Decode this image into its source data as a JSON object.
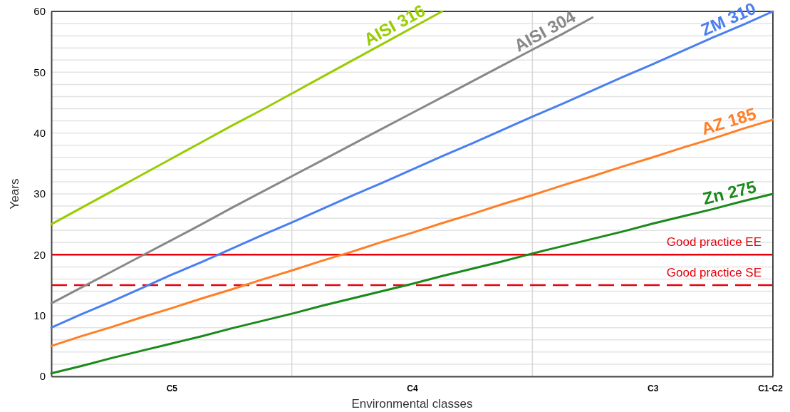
{
  "chart_data": {
    "type": "line",
    "xlabel": "Environmental classes",
    "ylabel": "Years",
    "categories": [
      null,
      null,
      null,
      null,
      "C5",
      null,
      null,
      null,
      null,
      null,
      null,
      null,
      "C4",
      null,
      null,
      null,
      null,
      null,
      null,
      null,
      "C3",
      null,
      null,
      null,
      "C1-C2"
    ],
    "ylim": [
      0,
      60
    ],
    "yticks": [
      0,
      {
        "value": 2,
        "label": null
      },
      {
        "value": 4,
        "label": null
      },
      {
        "value": 6,
        "label": null
      },
      {
        "value": 8,
        "label": null
      },
      10,
      {
        "value": 12,
        "label": null
      },
      {
        "value": 14,
        "label": null
      },
      {
        "value": 16,
        "label": null
      },
      {
        "value": 18,
        "label": null
      },
      20,
      {
        "value": 22,
        "label": null
      },
      {
        "value": 24,
        "label": null
      },
      {
        "value": 26,
        "label": null
      },
      {
        "value": 28,
        "label": null
      },
      30,
      {
        "value": 32,
        "label": null
      },
      {
        "value": 34,
        "label": null
      },
      {
        "value": 36,
        "label": null
      },
      {
        "value": 38,
        "label": null
      },
      40,
      {
        "value": 42,
        "label": null
      },
      {
        "value": 44,
        "label": null
      },
      {
        "value": 46,
        "label": null
      },
      {
        "value": 48,
        "label": null
      },
      50,
      {
        "value": 52,
        "label": null
      },
      {
        "value": 54,
        "label": null
      },
      {
        "value": 56,
        "label": null
      },
      {
        "value": 58,
        "label": null
      },
      60
    ],
    "grid": true,
    "marker": "none",
    "line_style": "solid",
    "series": [
      {
        "name": "AISI 316",
        "color": "#99cc00",
        "values": [
          25,
          27.7,
          30.4,
          33.1,
          35.8,
          38.5,
          41.2,
          43.8,
          46.5,
          49.2,
          51.9,
          54.6,
          57.3,
          60,
          null,
          null,
          null,
          null,
          null,
          null,
          null,
          null,
          null,
          null,
          null
        ]
      },
      {
        "name": "AISI 304",
        "color": "#888888",
        "values": [
          12,
          14.6,
          17.2,
          19.8,
          22.4,
          25,
          27.7,
          30.3,
          32.9,
          35.5,
          38.1,
          40.7,
          43.3,
          45.9,
          48.5,
          51.1,
          53.7,
          56.3,
          59,
          null,
          null,
          null,
          null,
          null,
          null
        ]
      },
      {
        "name": "ZM 310",
        "color": "#4a7ff0",
        "values": [
          8,
          10.2,
          12.3,
          14.5,
          16.7,
          18.8,
          21,
          23.2,
          25.3,
          27.5,
          29.7,
          31.8,
          34,
          36.2,
          38.3,
          40.5,
          42.7,
          44.8,
          47,
          49.2,
          51.3,
          53.5,
          55.7,
          57.8,
          60
        ]
      },
      {
        "name": "AZ 185",
        "color": "#ff7f27",
        "values": [
          5,
          6.6,
          8.1,
          9.7,
          11.2,
          12.8,
          14.3,
          15.9,
          17.4,
          19,
          20.5,
          22.1,
          23.6,
          25.2,
          26.7,
          28.3,
          29.8,
          31.4,
          32.9,
          34.5,
          36,
          37.6,
          39.1,
          40.7,
          42.2
        ]
      },
      {
        "name": "Zn 275",
        "color": "#1a8a1a",
        "values": [
          0.5,
          1.7,
          3,
          4.2,
          5.4,
          6.6,
          7.9,
          9.1,
          10.3,
          11.6,
          12.8,
          14,
          15.2,
          16.5,
          17.7,
          18.9,
          20.2,
          21.4,
          22.6,
          23.8,
          25.1,
          26.3,
          27.5,
          28.8,
          30
        ]
      }
    ],
    "ref_lines": [
      {
        "axis": "y",
        "value": 20,
        "label": "Good practice EE",
        "color": "#e8000b",
        "line_style": "solid"
      },
      {
        "axis": "y",
        "value": 15,
        "label": "Good practice SE",
        "color": "#e8000b",
        "line_style": "dashed"
      }
    ]
  }
}
